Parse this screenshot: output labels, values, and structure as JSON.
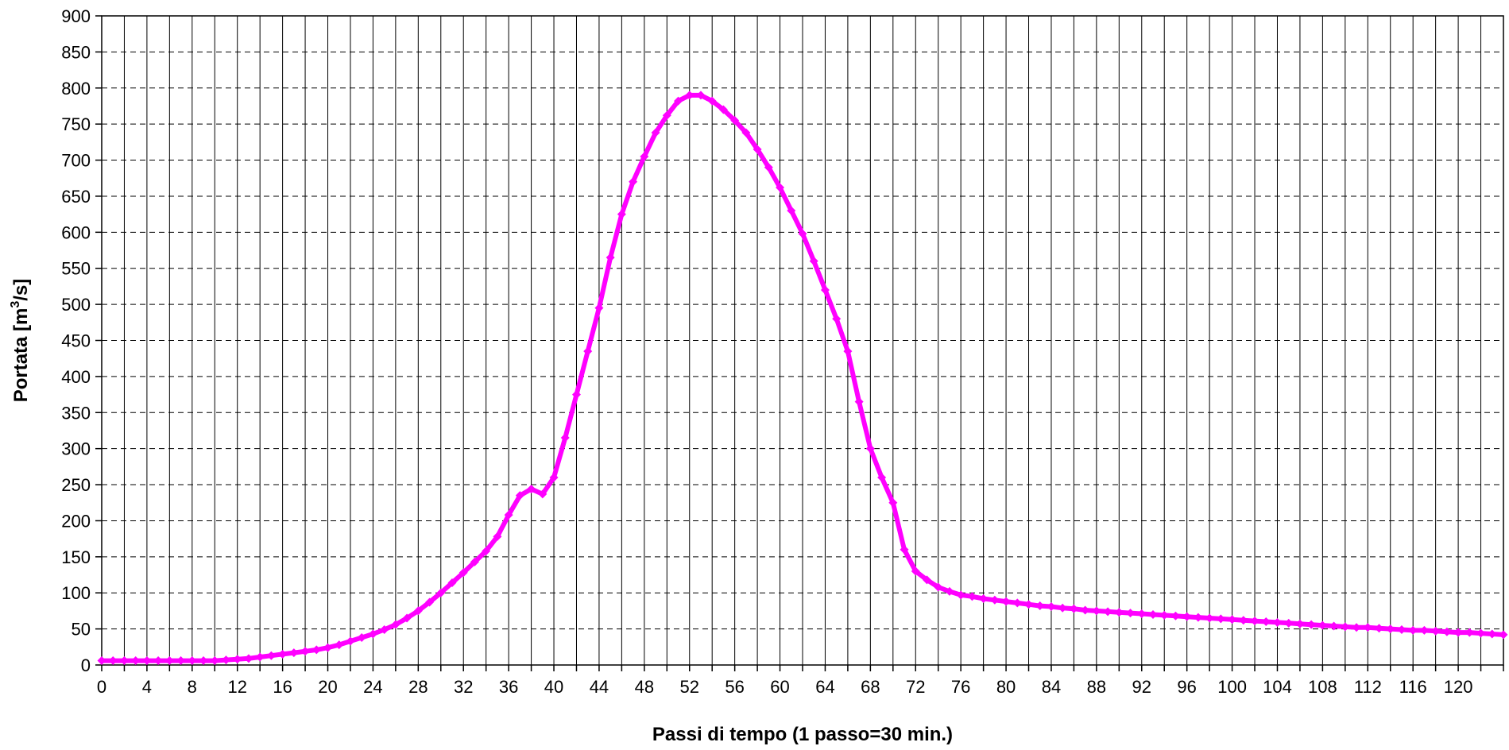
{
  "chart_data": {
    "type": "line",
    "xlabel": "Passi di tempo (1 passo=30 min.)",
    "ylabel_main": "Portata [m",
    "ylabel_sup": "3",
    "ylabel_end": "/s]",
    "xlim": [
      0,
      124
    ],
    "ylim": [
      0,
      900
    ],
    "x_ticks": [
      0,
      4,
      8,
      12,
      16,
      20,
      24,
      28,
      32,
      36,
      40,
      44,
      48,
      52,
      56,
      60,
      64,
      68,
      72,
      76,
      80,
      84,
      88,
      92,
      96,
      100,
      104,
      108,
      112,
      116,
      120
    ],
    "y_ticks": [
      0,
      50,
      100,
      150,
      200,
      250,
      300,
      350,
      400,
      450,
      500,
      550,
      600,
      650,
      700,
      750,
      800,
      850,
      900
    ],
    "grid": true,
    "legend": "none",
    "series": [
      {
        "color": "#ff00ff",
        "values": [
          6,
          6,
          6,
          6,
          6,
          6,
          6,
          6,
          6,
          6,
          6,
          7,
          8,
          9,
          11,
          13,
          15,
          17,
          19,
          21,
          24,
          28,
          33,
          38,
          43,
          49,
          56,
          65,
          75,
          87,
          100,
          114,
          128,
          143,
          158,
          178,
          208,
          235,
          244,
          237,
          260,
          315,
          375,
          435,
          495,
          565,
          625,
          670,
          705,
          738,
          762,
          782,
          790,
          790,
          782,
          770,
          755,
          738,
          715,
          690,
          662,
          630,
          598,
          560,
          520,
          480,
          435,
          365,
          300,
          260,
          225,
          160,
          130,
          118,
          108,
          102,
          97,
          95,
          92,
          90,
          88,
          86,
          84,
          82,
          81,
          79,
          78,
          76,
          75,
          74,
          73,
          72,
          71,
          70,
          69,
          68,
          67,
          66,
          65,
          64,
          63,
          62,
          61,
          60,
          59,
          58,
          57,
          56,
          55,
          54,
          53,
          52,
          52,
          51,
          50,
          49,
          48,
          48,
          47,
          46,
          45,
          45,
          44,
          43,
          42
        ]
      }
    ]
  }
}
